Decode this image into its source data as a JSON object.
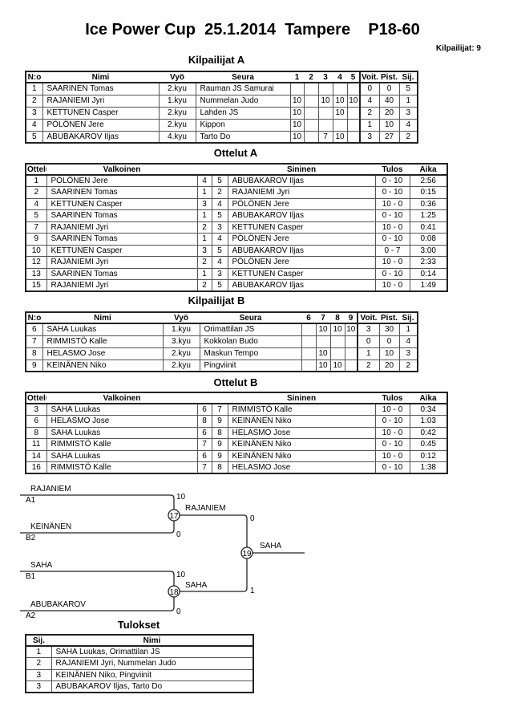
{
  "header": {
    "title": "Ice Power Cup  25.1.2014  Tampere    P18-60",
    "competitors_count": "Kilpailijat: 9"
  },
  "pool_a": {
    "title": "Kilpailijat A",
    "headers": [
      "N:o",
      "Nimi",
      "Vyö",
      "Seura",
      "1",
      "2",
      "3",
      "4",
      "5",
      "Voit.",
      "Pist.",
      "Sij."
    ],
    "rows": [
      [
        "1",
        "SAARINEN Tomas",
        "2.kyu",
        "Rauman JS Samurai",
        "",
        "",
        "",
        "",
        "",
        "0",
        "0",
        "5"
      ],
      [
        "2",
        "RAJANIEMI Jyri",
        "1.kyu",
        "Nummelan Judo",
        "10",
        "",
        "10",
        "10",
        "10",
        "4",
        "40",
        "1"
      ],
      [
        "3",
        "KETTUNEN Casper",
        "2.kyu",
        "Lahden JS",
        "10",
        "",
        "",
        "10",
        "",
        "2",
        "20",
        "3"
      ],
      [
        "4",
        "PÖLÖNEN Jere",
        "2.kyu",
        "Kippon",
        "10",
        "",
        "",
        "",
        "",
        "1",
        "10",
        "4"
      ],
      [
        "5",
        "ABUBAKAROV Iljas",
        "4.kyu",
        "Tarto Do",
        "10",
        "",
        "7",
        "10",
        "",
        "3",
        "27",
        "2"
      ]
    ]
  },
  "matches_a": {
    "title": "Ottelut A",
    "headers": [
      "Ottelu",
      "Valkoinen",
      "",
      "",
      "Sininen",
      "Tulos",
      "Aika"
    ],
    "rows": [
      [
        "1",
        "PÖLÖNEN Jere",
        "4",
        "5",
        "ABUBAKAROV Iljas",
        "0 - 10",
        "2:56"
      ],
      [
        "2",
        "SAARINEN Tomas",
        "1",
        "2",
        "RAJANIEMI Jyri",
        "0 - 10",
        "0:15"
      ],
      [
        "4",
        "KETTUNEN Casper",
        "3",
        "4",
        "PÖLÖNEN Jere",
        "10 - 0",
        "0:36"
      ],
      [
        "5",
        "SAARINEN Tomas",
        "1",
        "5",
        "ABUBAKAROV Iljas",
        "0 - 10",
        "1:25"
      ],
      [
        "7",
        "RAJANIEMI Jyri",
        "2",
        "3",
        "KETTUNEN Casper",
        "10 - 0",
        "0:41"
      ],
      [
        "9",
        "SAARINEN Tomas",
        "1",
        "4",
        "PÖLÖNEN Jere",
        "0 - 10",
        "0:08"
      ],
      [
        "10",
        "KETTUNEN Casper",
        "3",
        "5",
        "ABUBAKAROV Iljas",
        "0 - 7",
        "3:00"
      ],
      [
        "12",
        "RAJANIEMI Jyri",
        "2",
        "4",
        "PÖLÖNEN Jere",
        "10 - 0",
        "2:33"
      ],
      [
        "13",
        "SAARINEN Tomas",
        "1",
        "3",
        "KETTUNEN Casper",
        "0 - 10",
        "0:14"
      ],
      [
        "15",
        "RAJANIEMI Jyri",
        "2",
        "5",
        "ABUBAKAROV Iljas",
        "10 - 0",
        "1:49"
      ]
    ]
  },
  "pool_b": {
    "title": "Kilpailijat B",
    "headers": [
      "N:o",
      "Nimi",
      "Vyö",
      "Seura",
      "6",
      "7",
      "8",
      "9",
      "Voit.",
      "Pist.",
      "Sij."
    ],
    "rows": [
      [
        "6",
        "SAHA Luukas",
        "1.kyu",
        "Orimattilan JS",
        "",
        "10",
        "10",
        "10",
        "3",
        "30",
        "1"
      ],
      [
        "7",
        "RIMMISTÖ Kalle",
        "3.kyu",
        "Kokkolan Budo",
        "",
        "",
        "",
        "",
        "0",
        "0",
        "4"
      ],
      [
        "8",
        "HELASMO Jose",
        "2.kyu",
        "Maskun Tempo",
        "",
        "10",
        "",
        "",
        "1",
        "10",
        "3"
      ],
      [
        "9",
        "KEINÄNEN Niko",
        "2.kyu",
        "Pingviinit",
        "",
        "10",
        "10",
        "",
        "2",
        "20",
        "2"
      ]
    ]
  },
  "matches_b": {
    "title": "Ottelut B",
    "headers": [
      "Ottelu",
      "Valkoinen",
      "",
      "",
      "Sininen",
      "Tulos",
      "Aika"
    ],
    "rows": [
      [
        "3",
        "SAHA Luukas",
        "6",
        "7",
        "RIMMISTÖ Kalle",
        "10 - 0",
        "0:34"
      ],
      [
        "6",
        "HELASMO Jose",
        "8",
        "9",
        "KEINÄNEN Niko",
        "0 - 10",
        "1:03"
      ],
      [
        "8",
        "SAHA Luukas",
        "6",
        "8",
        "HELASMO Jose",
        "10 - 0",
        "0:42"
      ],
      [
        "11",
        "RIMMISTÖ Kalle",
        "7",
        "9",
        "KEINÄNEN Niko",
        "0 - 10",
        "0:45"
      ],
      [
        "14",
        "SAHA Luukas",
        "6",
        "9",
        "KEINÄNEN Niko",
        "10 - 0",
        "0:12"
      ],
      [
        "16",
        "RIMMISTÖ Kalle",
        "7",
        "8",
        "HELASMO Jose",
        "0 - 10",
        "1:38"
      ]
    ]
  },
  "bracket": {
    "semi1": {
      "match": "17",
      "top_name": "RAJANIEM",
      "top_seed": "A1",
      "top_score": "10",
      "bottom_name": "KEINÄNEN",
      "bottom_seed": "B2",
      "bottom_score": "0",
      "winner": "RAJANIEM"
    },
    "semi2": {
      "match": "18",
      "top_name": "SAHA",
      "top_seed": "B1",
      "top_score": "10",
      "bottom_name": "ABUBAKAROV",
      "bottom_seed": "A2",
      "bottom_score": "0",
      "winner": "SAHA"
    },
    "final": {
      "match": "19",
      "top_score": "0",
      "bottom_score": "1",
      "winner": "SAHA"
    }
  },
  "results": {
    "title": "Tulokset",
    "headers": [
      "Sij.",
      "Nimi"
    ],
    "rows": [
      [
        "1",
        "SAHA Luukas, Orimattilan JS"
      ],
      [
        "2",
        "RAJANIEMI Jyri, Nummelan Judo"
      ],
      [
        "3",
        "KEINÄNEN Niko, Pingviinit"
      ],
      [
        "3",
        "ABUBAKAROV Iljas, Tarto Do"
      ]
    ]
  }
}
